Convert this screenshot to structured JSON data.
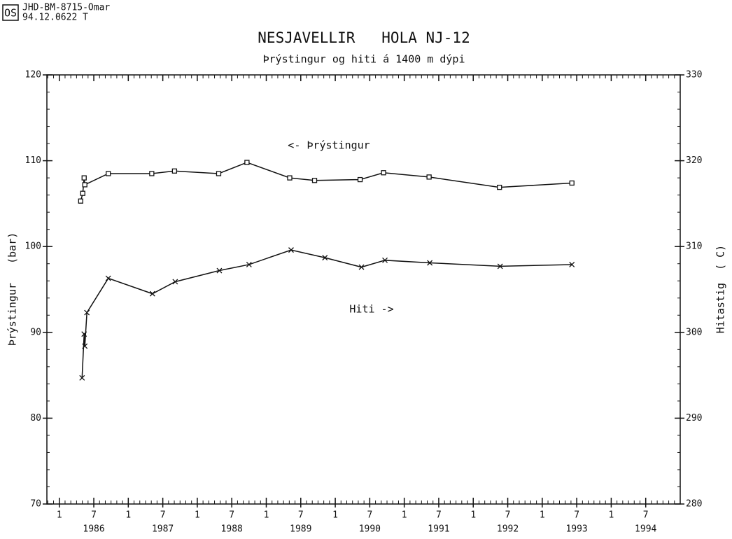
{
  "header": {
    "logo": "OS",
    "code": "JHD-BM-8715-Omar",
    "ref": "94.12.0622  T"
  },
  "chart_data": {
    "type": "line",
    "title": "NESJAVELLIR   HOLA NJ-12",
    "subtitle": "Þrýstingur og hiti á 1400 m dýpi",
    "ylabel": "Þrýstingur   (bar)",
    "y2label": "Hitastig  ( C)",
    "annotations": [
      "<- Þrýstingur",
      "Hiti ->"
    ],
    "xlim": [
      1985.82,
      1995.0
    ],
    "ylim": [
      70,
      120
    ],
    "yticks": [
      70,
      80,
      90,
      100,
      110,
      120
    ],
    "y2lim": [
      280,
      330
    ],
    "y2ticks": [
      280,
      290,
      300,
      310,
      320,
      330
    ],
    "minor_per_year": 12,
    "y_minor_step": 2,
    "xticks": [
      {
        "value": 1986.0,
        "label": "1"
      },
      {
        "value": 1986.5,
        "label": "7"
      },
      {
        "value": 1987.0,
        "label": "1"
      },
      {
        "value": 1987.5,
        "label": "7"
      },
      {
        "value": 1988.0,
        "label": "1"
      },
      {
        "value": 1988.5,
        "label": "7"
      },
      {
        "value": 1989.0,
        "label": "1"
      },
      {
        "value": 1989.5,
        "label": "7"
      },
      {
        "value": 1990.0,
        "label": "1"
      },
      {
        "value": 1990.5,
        "label": "7"
      },
      {
        "value": 1991.0,
        "label": "1"
      },
      {
        "value": 1991.5,
        "label": "7"
      },
      {
        "value": 1992.0,
        "label": "1"
      },
      {
        "value": 1992.5,
        "label": "7"
      },
      {
        "value": 1993.0,
        "label": "1"
      },
      {
        "value": 1993.5,
        "label": "7"
      },
      {
        "value": 1994.0,
        "label": "1"
      },
      {
        "value": 1994.5,
        "label": "7"
      }
    ],
    "year_labels": [
      {
        "value": 1986.5,
        "label": "1986"
      },
      {
        "value": 1987.5,
        "label": "1987"
      },
      {
        "value": 1988.5,
        "label": "1988"
      },
      {
        "value": 1989.5,
        "label": "1989"
      },
      {
        "value": 1990.5,
        "label": "1990"
      },
      {
        "value": 1991.5,
        "label": "1991"
      },
      {
        "value": 1992.5,
        "label": "1992"
      },
      {
        "value": 1993.5,
        "label": "1993"
      },
      {
        "value": 1994.5,
        "label": "1994"
      }
    ],
    "color": "#111111",
    "series": [
      {
        "name": "Þrýstingur",
        "marker": "square",
        "axis": "y",
        "x": [
          1986.31,
          1986.34,
          1986.36,
          1986.37,
          1986.71,
          1987.34,
          1987.67,
          1988.31,
          1988.72,
          1989.34,
          1989.7,
          1990.36,
          1990.7,
          1991.36,
          1992.38,
          1993.43
        ],
        "values": [
          105.3,
          106.2,
          108.0,
          107.2,
          108.5,
          108.5,
          108.8,
          108.5,
          109.8,
          108.0,
          107.7,
          107.8,
          108.6,
          108.1,
          106.9,
          107.4
        ]
      },
      {
        "name": "Hiti",
        "marker": "cross",
        "axis": "y2",
        "x": [
          1986.33,
          1986.36,
          1986.37,
          1986.4,
          1986.71,
          1987.35,
          1987.68,
          1988.32,
          1988.75,
          1989.36,
          1989.85,
          1990.38,
          1990.72,
          1991.37,
          1992.39,
          1993.43
        ],
        "values": [
          294.7,
          299.8,
          298.4,
          302.3,
          306.3,
          304.5,
          305.9,
          307.2,
          307.9,
          309.6,
          308.7,
          307.6,
          308.4,
          308.1,
          307.7,
          307.9
        ]
      }
    ]
  }
}
